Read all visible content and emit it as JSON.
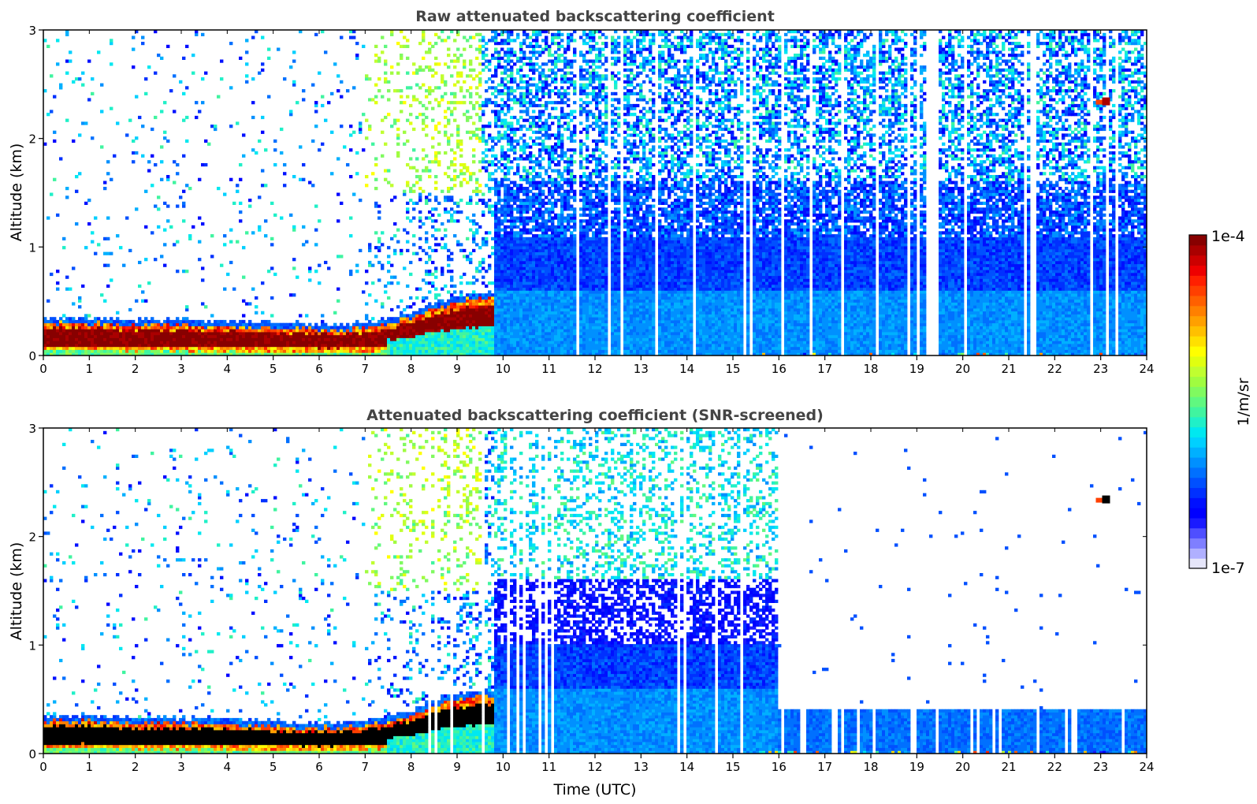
{
  "chart_data": [
    {
      "type": "heatmap",
      "title": "Raw attenuated backscattering coefficient",
      "xlabel": "",
      "ylabel": "Altitude (km)",
      "xlim": [
        0,
        24
      ],
      "ylim": [
        0,
        3
      ],
      "xticks": [
        "0",
        "1",
        "2",
        "3",
        "4",
        "5",
        "6",
        "7",
        "8",
        "9",
        "10",
        "11",
        "12",
        "13",
        "14",
        "15",
        "16",
        "17",
        "18",
        "19",
        "20",
        "21",
        "22",
        "23",
        "24"
      ],
      "yticks": [
        "0",
        "1",
        "2",
        "3"
      ],
      "features": {
        "aerosol_layer_top_km": [
          0.3,
          0.3,
          0.28,
          0.28,
          0.27,
          0.25,
          0.24,
          0.25,
          0.35,
          0.5,
          0.55
        ],
        "aerosol_layer_top_hours": [
          0,
          1,
          2,
          3,
          4,
          5,
          6,
          7,
          8,
          9,
          9.8
        ],
        "elevated_feature": {
          "time_h": 23.1,
          "alt_km": 2.32
        }
      }
    },
    {
      "type": "heatmap",
      "title": "Attenuated backscattering coefficient (SNR-screened)",
      "xlabel": "Time (UTC)",
      "ylabel": "Altitude (km)",
      "xlim": [
        0,
        24
      ],
      "ylim": [
        0,
        3
      ],
      "xticks": [
        "0",
        "1",
        "2",
        "3",
        "4",
        "5",
        "6",
        "7",
        "8",
        "9",
        "10",
        "11",
        "12",
        "13",
        "14",
        "15",
        "16",
        "17",
        "18",
        "19",
        "20",
        "21",
        "22",
        "23",
        "24"
      ],
      "yticks": [
        "0",
        "1",
        "2",
        "3"
      ],
      "features": {
        "screened_top_after_16h_km": 0.4,
        "elevated_feature": {
          "time_h": 23.1,
          "alt_km": 2.32
        }
      }
    }
  ],
  "colorbar": {
    "label": "1/m/sr",
    "max_label": "1e-4",
    "min_label": "1e-7",
    "scale": "log",
    "colors": [
      "#e6e6fa",
      "#b0b0ff",
      "#7f7fff",
      "#4f4fff",
      "#1a1aff",
      "#0000ff",
      "#0010ff",
      "#0030ff",
      "#0050ff",
      "#0070ff",
      "#0090ff",
      "#00b0ff",
      "#00d0ff",
      "#00e8f0",
      "#20f0c8",
      "#40f4a0",
      "#60f880",
      "#80fa60",
      "#a0fc40",
      "#c0fe30",
      "#e0ff10",
      "#ffff00",
      "#ffe000",
      "#ffc000",
      "#ffa000",
      "#ff8000",
      "#ff6000",
      "#ff4000",
      "#ff2000",
      "#ee0000",
      "#cc0000",
      "#aa0000",
      "#880000"
    ]
  }
}
